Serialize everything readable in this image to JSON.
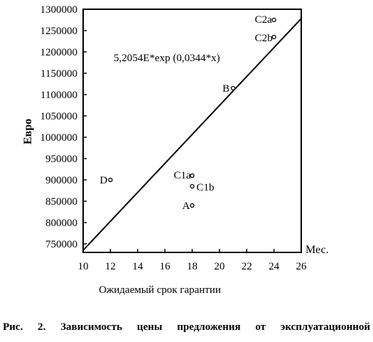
{
  "chart_data": {
    "type": "scatter",
    "ylabel": "Евро",
    "xlabel": "Ожидаемый срок гарантии",
    "x_unit": "Мес.",
    "xlim": [
      10,
      26
    ],
    "ylim": [
      730000,
      1300000
    ],
    "x_ticks": [
      10,
      12,
      14,
      16,
      18,
      20,
      22,
      24,
      26
    ],
    "y_ticks": [
      750000,
      800000,
      850000,
      900000,
      950000,
      1000000,
      1050000,
      1100000,
      1150000,
      1200000,
      1250000,
      1300000
    ],
    "equation": "5,2054E*exp (0,0344*x)",
    "fit_line": {
      "x": [
        10,
        26
      ],
      "y": [
        735000,
        1278000
      ]
    },
    "points": [
      {
        "label": "C2a",
        "x": 24,
        "y": 1275000
      },
      {
        "label": "C2b",
        "x": 24,
        "y": 1235000
      },
      {
        "label": "B",
        "x": 21,
        "y": 1115000
      },
      {
        "label": "D",
        "x": 12,
        "y": 900000
      },
      {
        "label": "C1a",
        "x": 18,
        "y": 910000
      },
      {
        "label": "C1b",
        "x": 18,
        "y": 885000
      },
      {
        "label": "A",
        "x": 18,
        "y": 840000
      }
    ]
  },
  "caption": "Рис. 2. Зависимость цены предложения от эксплуатационной"
}
